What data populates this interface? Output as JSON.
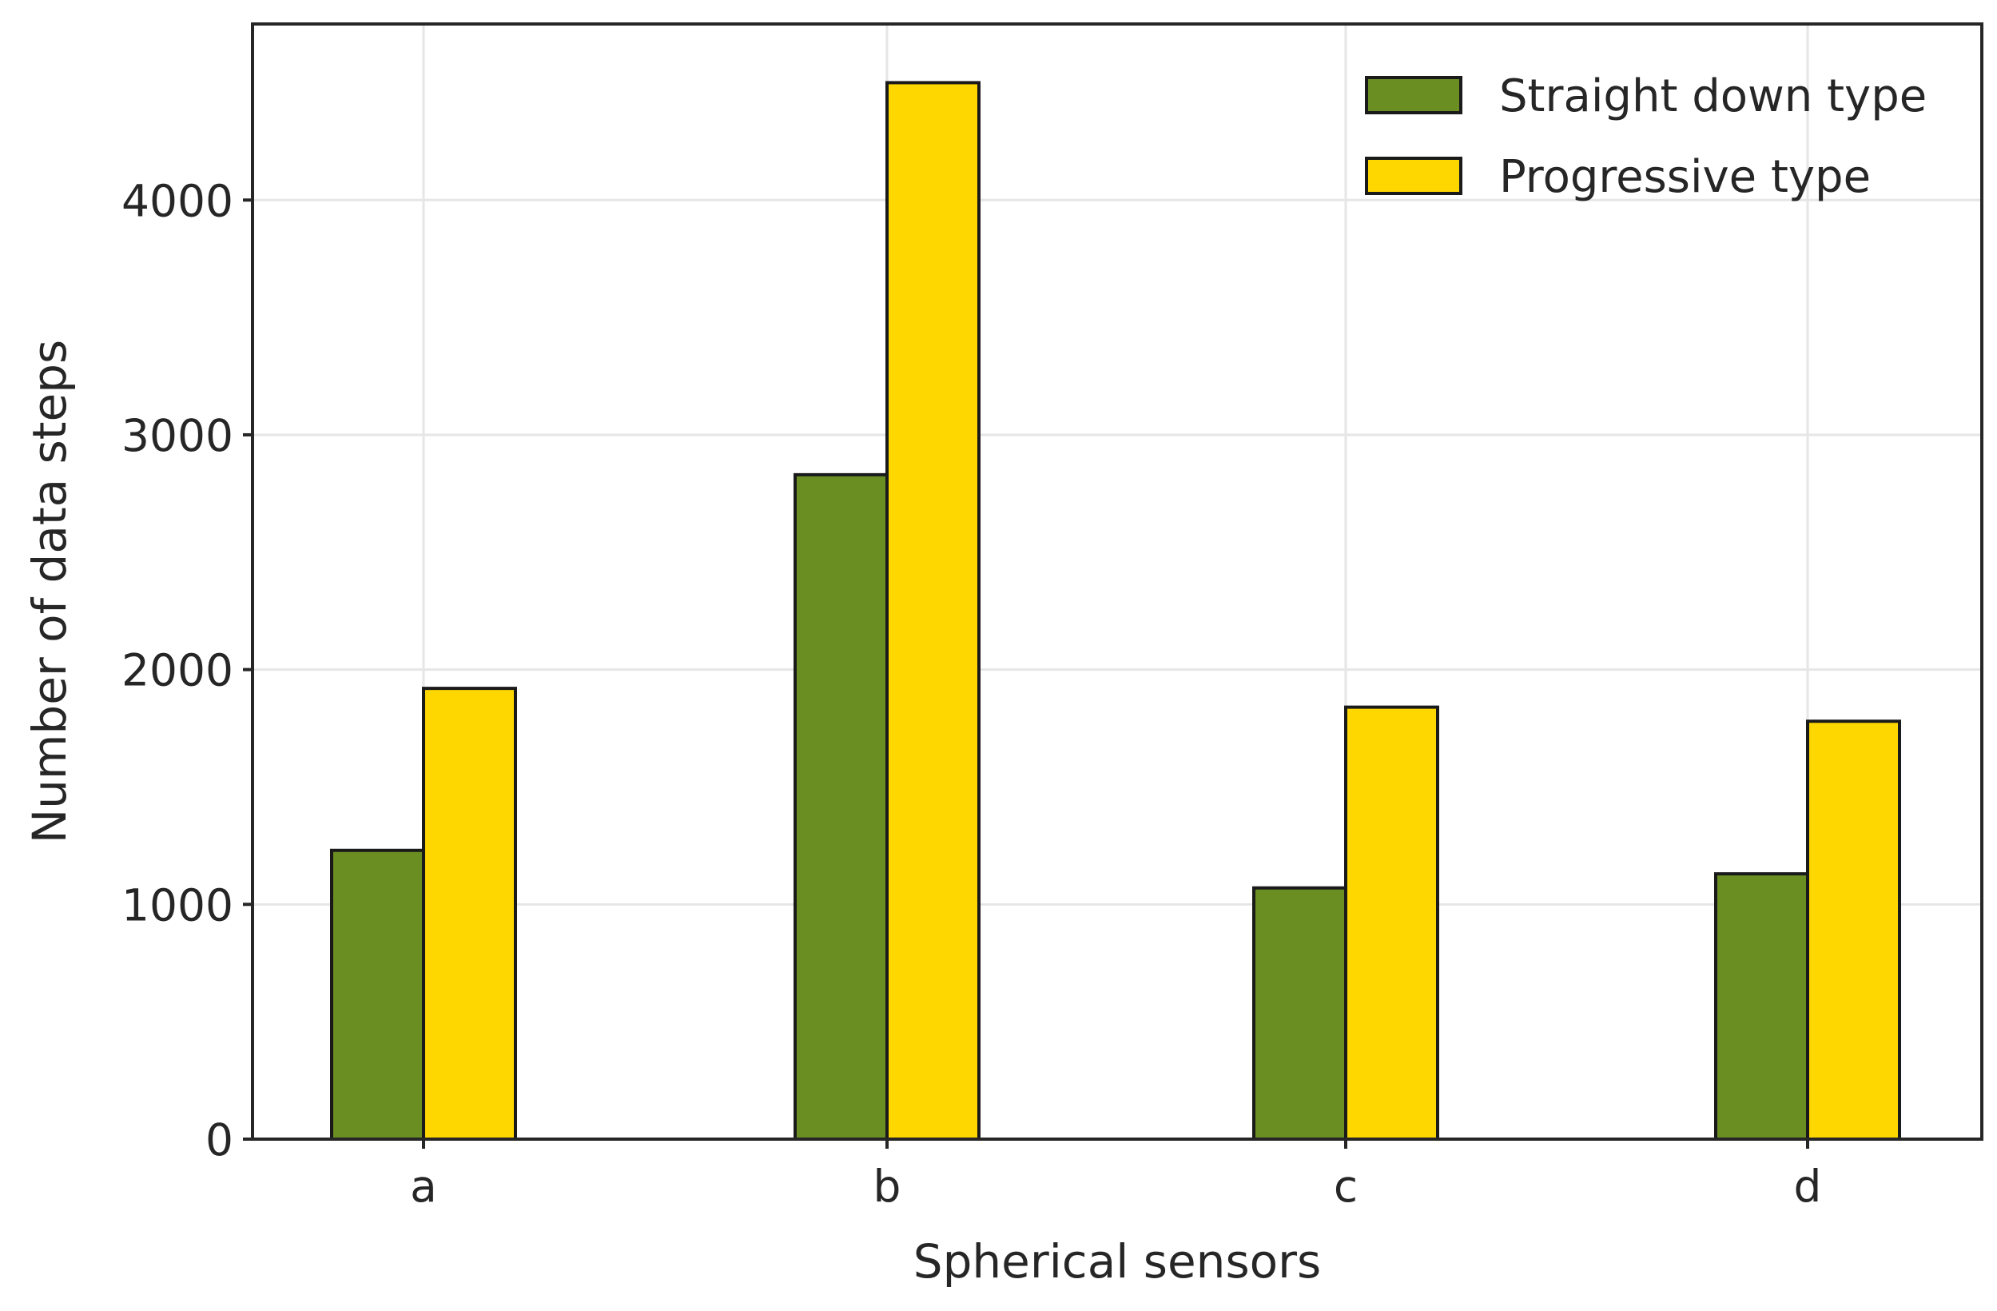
{
  "chart_data": {
    "type": "bar",
    "title": "",
    "xlabel": "Spherical sensors",
    "ylabel": "Number of data steps",
    "categories": [
      "a",
      "b",
      "c",
      "d"
    ],
    "series": [
      {
        "name": "Straight down type",
        "color": "#6b8e23",
        "values": [
          1230,
          2830,
          1070,
          1130
        ]
      },
      {
        "name": "Progressive type",
        "color": "#ffd700",
        "values": [
          1920,
          4500,
          1840,
          1780
        ]
      }
    ],
    "yticks": [
      0,
      1000,
      2000,
      3000,
      4000
    ],
    "ylim": [
      0,
      4750
    ],
    "grid": true,
    "legend_position": "top-right"
  }
}
